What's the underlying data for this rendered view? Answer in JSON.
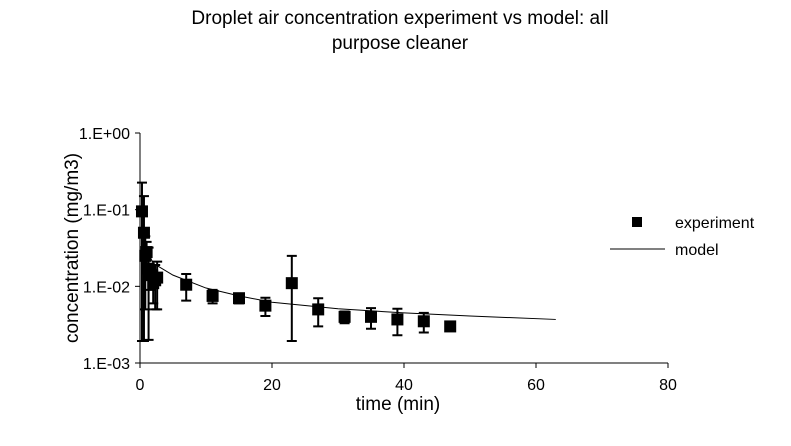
{
  "chart_data": {
    "type": "scatter",
    "title": "Droplet air concentration experiment vs model: all purpose cleaner",
    "x_label": "time (min)",
    "y_label": "concentration (mg/m3)",
    "log_y": true,
    "legend": "right",
    "xlim": [
      0,
      80
    ],
    "xticks": [
      0,
      20,
      40,
      60,
      80
    ],
    "ylim": [
      0.001,
      1
    ],
    "yticks": [
      {
        "value": 1,
        "label": "1.E+00"
      },
      {
        "value": 0.1,
        "label": "1.E-01"
      },
      {
        "value": 0.01,
        "label": "1.E-02"
      },
      {
        "value": 0.001,
        "label": "1.E-03"
      }
    ],
    "series": [
      {
        "name": "experiment",
        "color": "#000000",
        "marker": "square",
        "x": [
          0.3,
          0.6,
          0.8,
          1.0,
          1.3,
          1.6,
          2.0,
          2.3,
          2.6,
          7,
          11,
          15,
          19,
          23,
          27,
          31,
          35,
          39,
          43,
          47
        ],
        "values": [
          0.095,
          0.05,
          0.025,
          0.028,
          0.017,
          0.014,
          0.011,
          0.012,
          0.013,
          0.0105,
          0.0075,
          0.007,
          0.0056,
          0.011,
          0.005,
          0.004,
          0.004,
          0.0037,
          0.0035,
          0.003
        ],
        "error": [
          0.13,
          0.1,
          0.02,
          0.01,
          0.015,
          0.005,
          0.005,
          0.007,
          0.008,
          0.004,
          0.0015,
          0.001,
          0.0015,
          0.014,
          0.002,
          0.0007,
          0.0012,
          0.0014,
          0.001,
          0
        ]
      },
      {
        "name": "model",
        "color": "#000000",
        "marker": "line",
        "x": [
          0.5,
          1,
          2,
          5,
          10,
          15,
          20,
          30,
          40,
          50,
          63
        ],
        "values": [
          0.06,
          0.03,
          0.02,
          0.014,
          0.0095,
          0.0075,
          0.0062,
          0.0051,
          0.0045,
          0.0041,
          0.0037
        ]
      }
    ]
  }
}
